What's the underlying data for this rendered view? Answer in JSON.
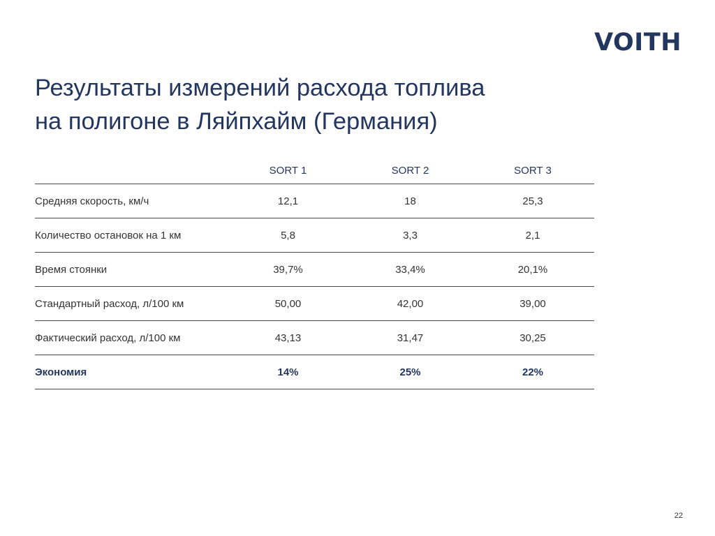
{
  "logo": "VOITH",
  "title": {
    "line1": "Результаты измерений расхода топлива",
    "line2": "на полигоне в Ляйпхайм (Германия)"
  },
  "table": {
    "headers": [
      "",
      "SORT 1",
      "SORT 2",
      "SORT 3"
    ],
    "rows": [
      {
        "label": "Средняя скорость, км/ч",
        "values": [
          "12,1",
          "18",
          "25,3"
        ]
      },
      {
        "label": "Количество остановок на 1 км",
        "values": [
          "5,8",
          "3,3",
          "2,1"
        ]
      },
      {
        "label": "Время стоянки",
        "values": [
          "39,7%",
          "33,4%",
          "20,1%"
        ]
      },
      {
        "label": "Стандартный расход, л/100 км",
        "values": [
          "50,00",
          "42,00",
          "39,00"
        ]
      },
      {
        "label": "Фактический расход, л/100 км",
        "values": [
          "43,13",
          "31,47",
          "30,25"
        ]
      },
      {
        "label": "Экономия",
        "values": [
          "14%",
          "25%",
          "22%"
        ]
      }
    ]
  },
  "page_number": "22",
  "colors": {
    "brand": "#23365f",
    "text": "#333333",
    "rule": "#4a4a4a"
  }
}
